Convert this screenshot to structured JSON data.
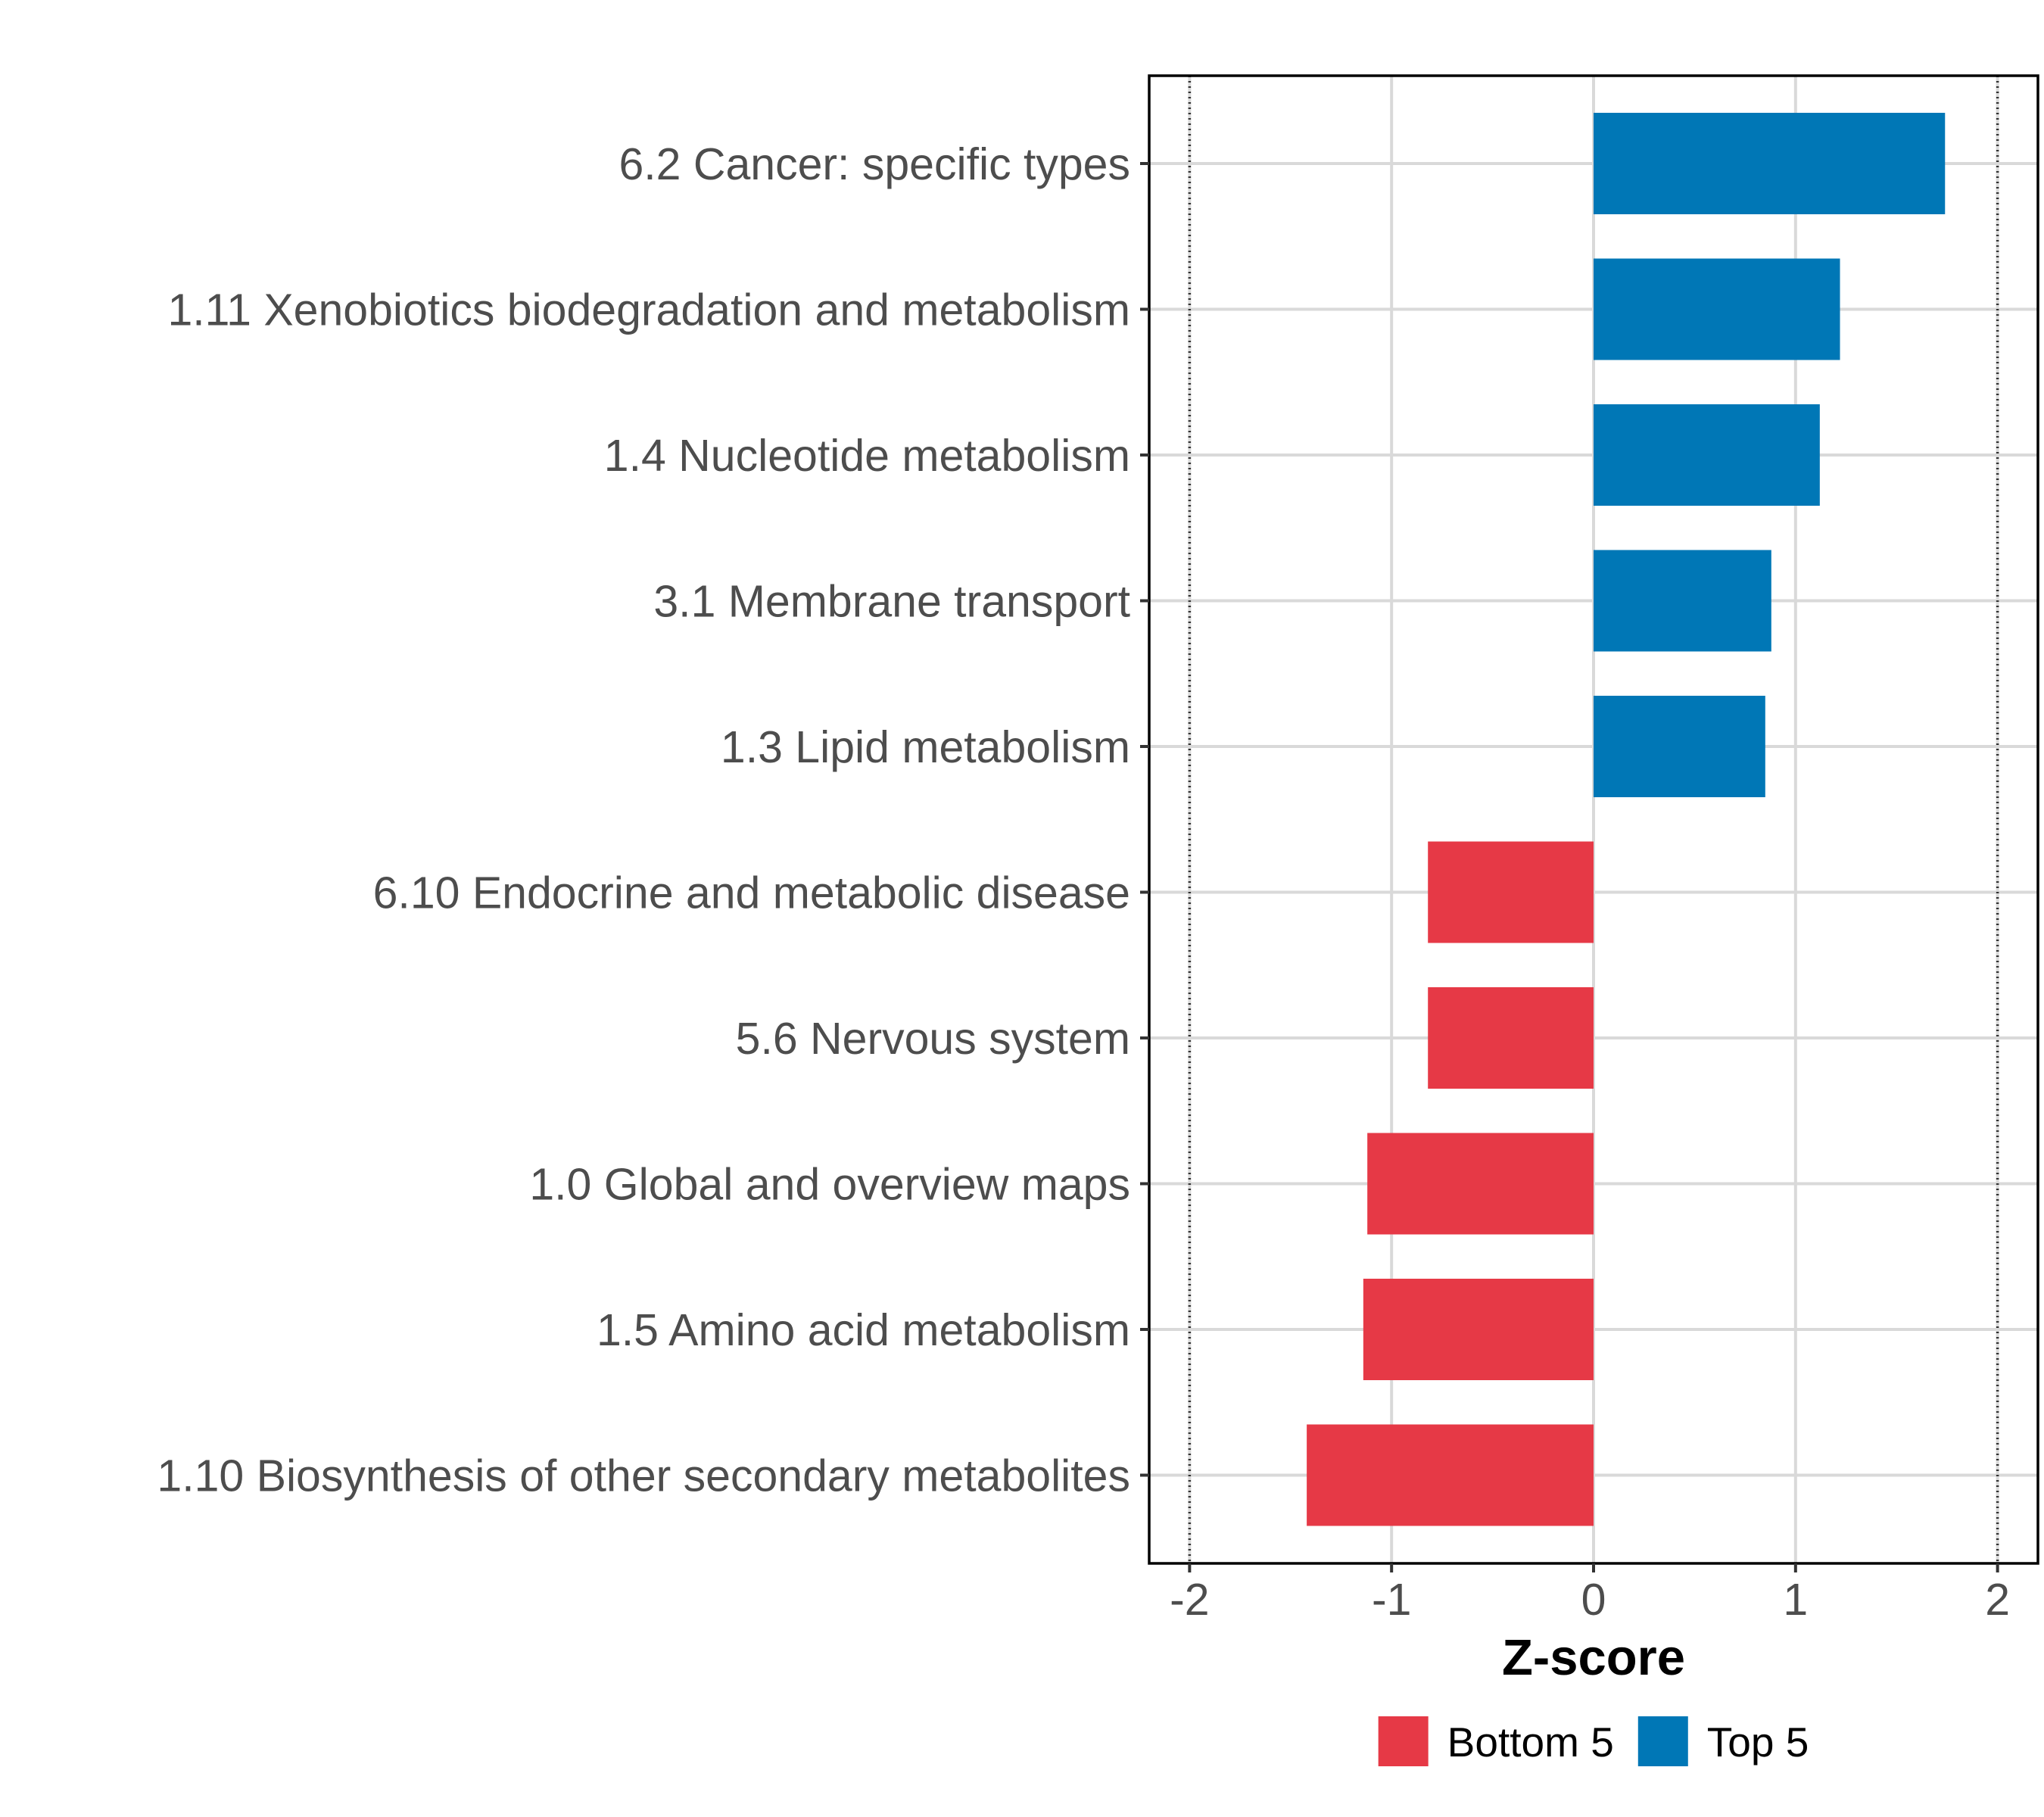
{
  "chart_data": {
    "type": "bar",
    "orientation": "horizontal",
    "title": "",
    "xlabel": "Z-score",
    "ylabel": "",
    "xlim": [
      -2.2,
      2.2
    ],
    "xticks": [
      -2,
      -1,
      0,
      1,
      2
    ],
    "xtick_labels": [
      "-2",
      "-1",
      "0",
      "1",
      "2"
    ],
    "reference_lines": [
      -2,
      2
    ],
    "grid": true,
    "categories": [
      "6.2 Cancer: specific types",
      "1.11 Xenobiotics biodegradation and metabolism",
      "1.4 Nucleotide metabolism",
      "3.1 Membrane transport",
      "1.3 Lipid metabolism",
      "6.10 Endocrine and metabolic disease",
      "5.6 Nervous system",
      "1.0 Global and overview maps",
      "1.5 Amino acid metabolism",
      "1.10 Biosynthesis of other secondary metabolites"
    ],
    "values": [
      1.74,
      1.22,
      1.12,
      0.88,
      0.85,
      -0.82,
      -0.82,
      -1.12,
      -1.14,
      -1.42
    ],
    "groups": [
      "Top 5",
      "Top 5",
      "Top 5",
      "Top 5",
      "Top 5",
      "Bottom 5",
      "Bottom 5",
      "Bottom 5",
      "Bottom 5",
      "Bottom 5"
    ],
    "legend": {
      "position": "bottom",
      "entries": [
        {
          "label": "Bottom 5",
          "color": "#e63946"
        },
        {
          "label": "Top 5",
          "color": "#0077b6"
        }
      ]
    }
  }
}
